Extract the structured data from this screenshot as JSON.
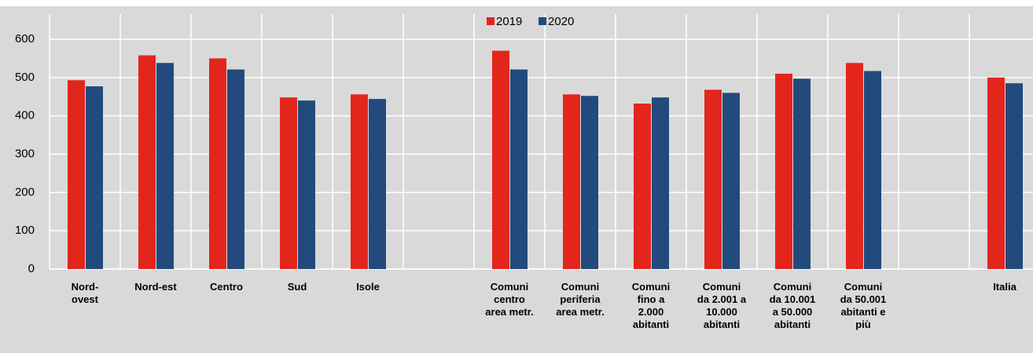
{
  "chart_data": {
    "type": "bar",
    "categories": [
      "Nord-\novest",
      "Nord-est",
      "Centro",
      "Sud",
      "Isole",
      null,
      "Comuni\ncentro\narea metr.",
      "Comuni\nperiferia\narea metr.",
      "Comuni\nfino a\n2.000\nabitanti",
      "Comuni\nda 2.001 a\n10.000\nabitanti",
      "Comuni\nda 10.001\na 50.000\nabitanti",
      "Comuni\nda 50.001\nabitanti e\npiù",
      null,
      "Italia"
    ],
    "series": [
      {
        "name": "2019",
        "color": "#e3261c",
        "values": [
          493,
          558,
          550,
          448,
          456,
          null,
          570,
          456,
          432,
          468,
          510,
          538,
          null,
          500
        ]
      },
      {
        "name": "2020",
        "color": "#224a7d",
        "values": [
          477,
          538,
          521,
          440,
          444,
          null,
          521,
          452,
          448,
          460,
          497,
          517,
          null,
          485
        ]
      }
    ],
    "ylim": [
      0,
      600
    ],
    "yticks": [
      0,
      100,
      200,
      300,
      400,
      500,
      600
    ],
    "grid": true,
    "legend": "top"
  }
}
